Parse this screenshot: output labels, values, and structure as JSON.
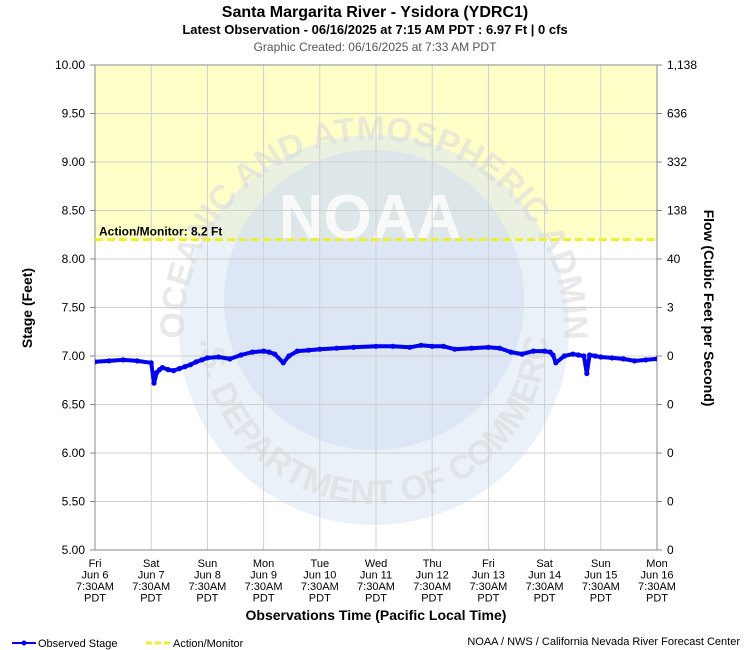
{
  "chart_data": {
    "type": "line",
    "title": "Santa Margarita River - Ysidora (YDRC1)",
    "subtitle": "Latest Observation - 06/16/2025 at 7:15 AM PDT : 6.97 Ft | 0 cfs",
    "created": "Graphic Created: 06/16/2025 at 7:33 AM PDT",
    "xlabel": "Observations Time (Pacific Local Time)",
    "ylabel": "Stage (Feet)",
    "y2label": "Flow (Cubic Feet per Second)",
    "ylim": [
      5.0,
      10.0
    ],
    "y_ticks": [
      "5.00",
      "5.50",
      "6.00",
      "6.50",
      "7.00",
      "7.50",
      "8.00",
      "8.50",
      "9.00",
      "9.50",
      "10.00"
    ],
    "y2_ticks": [
      "0",
      "0",
      "0",
      "0",
      "0",
      "3",
      "40",
      "138",
      "332",
      "636",
      "1,138"
    ],
    "x_ticks": [
      [
        "Fri",
        "Jun 6",
        "7:30AM",
        "PDT"
      ],
      [
        "Sat",
        "Jun 7",
        "7:30AM",
        "PDT"
      ],
      [
        "Sun",
        "Jun 8",
        "7:30AM",
        "PDT"
      ],
      [
        "Mon",
        "Jun 9",
        "7:30AM",
        "PDT"
      ],
      [
        "Tue",
        "Jun 10",
        "7:30AM",
        "PDT"
      ],
      [
        "Wed",
        "Jun 11",
        "7:30AM",
        "PDT"
      ],
      [
        "Thu",
        "Jun 12",
        "7:30AM",
        "PDT"
      ],
      [
        "Fri",
        "Jun 13",
        "7:30AM",
        "PDT"
      ],
      [
        "Sat",
        "Jun 14",
        "7:30AM",
        "PDT"
      ],
      [
        "Sun",
        "Jun 15",
        "7:30AM",
        "PDT"
      ],
      [
        "Mon",
        "Jun 16",
        "7:30AM",
        "PDT"
      ]
    ],
    "action_level": 8.2,
    "action_label": "Action/Monitor: 8.2 Ft",
    "grid": true,
    "legend_position": "bottom-left",
    "series": [
      {
        "name": "Observed Stage",
        "color": "#0000ee",
        "x": [
          0,
          0.25,
          0.5,
          0.75,
          1.0,
          1.05,
          1.1,
          1.15,
          1.2,
          1.3,
          1.4,
          1.5,
          1.6,
          1.7,
          1.8,
          1.9,
          2.0,
          2.2,
          2.4,
          2.6,
          2.8,
          3.0,
          3.1,
          3.2,
          3.35,
          3.45,
          3.6,
          3.8,
          4.0,
          4.3,
          4.6,
          5.0,
          5.3,
          5.6,
          5.8,
          6.0,
          6.2,
          6.4,
          6.7,
          7.0,
          7.2,
          7.4,
          7.6,
          7.8,
          8.0,
          8.1,
          8.15,
          8.2,
          8.35,
          8.5,
          8.6,
          8.7,
          8.75,
          8.8,
          8.9,
          9.0,
          9.2,
          9.4,
          9.6,
          9.8,
          10.0
        ],
        "y": [
          6.94,
          6.95,
          6.96,
          6.95,
          6.93,
          6.72,
          6.83,
          6.86,
          6.88,
          6.86,
          6.85,
          6.87,
          6.89,
          6.91,
          6.94,
          6.96,
          6.98,
          6.99,
          6.97,
          7.01,
          7.04,
          7.05,
          7.04,
          7.02,
          6.93,
          7.0,
          7.05,
          7.06,
          7.07,
          7.08,
          7.09,
          7.1,
          7.1,
          7.09,
          7.11,
          7.1,
          7.1,
          7.07,
          7.08,
          7.09,
          7.08,
          7.04,
          7.02,
          7.05,
          7.05,
          7.04,
          7.01,
          6.93,
          7.0,
          7.02,
          7.01,
          7.0,
          6.82,
          7.01,
          7.0,
          6.99,
          6.98,
          6.97,
          6.95,
          6.96,
          6.97
        ]
      }
    ]
  },
  "watermark": {
    "ring_text_top": "NATIONAL OCEANIC AND ATMOSPHERIC ADMINISTRATION",
    "ring_text_bottom": "U.S. DEPARTMENT OF COMMERCE",
    "center": "NOAA"
  },
  "legend": {
    "observed": "Observed Stage",
    "action": "Action/Monitor",
    "observed_color": "#0000ee",
    "action_color": "#eeee33"
  },
  "footer": "NOAA / NWS / California Nevada River Forecast Center"
}
